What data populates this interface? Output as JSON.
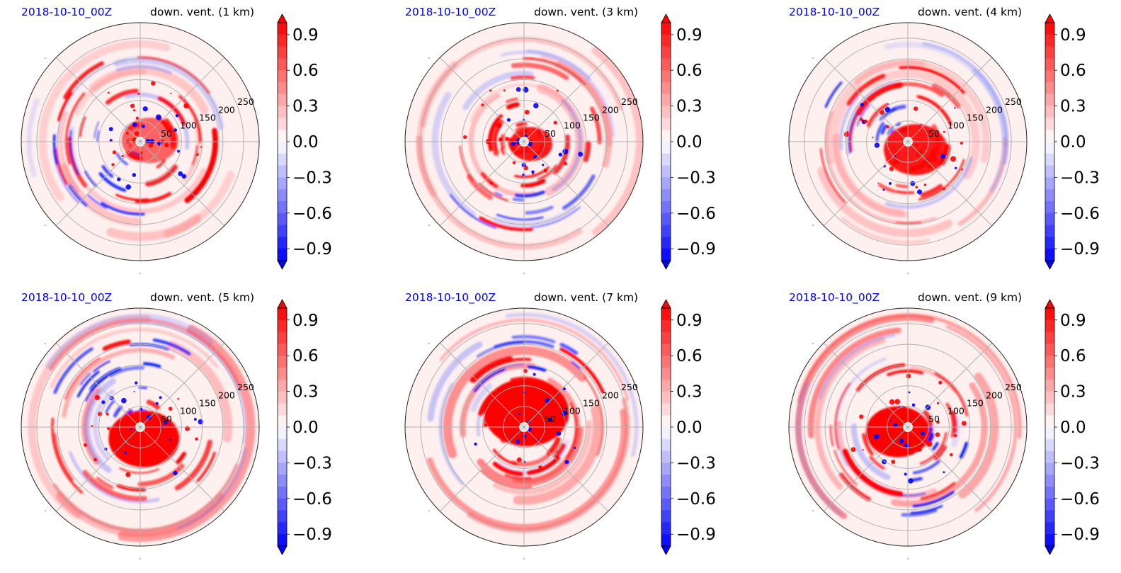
{
  "chart_data": [
    {
      "type": "heatmap",
      "projection": "polar",
      "date": "2018-10-10_00Z",
      "title": "down. vent. (1 km)",
      "radial_ticks": [
        "50",
        "100",
        "150",
        "200",
        "250"
      ],
      "colorbar": {
        "min": -1.0,
        "max": 1.0,
        "extend": "both",
        "ticks": [
          "0.9",
          "0.6",
          "0.3",
          "0.0",
          "−0.3",
          "−0.6",
          "−0.9"
        ],
        "colormap": "bwr"
      }
    },
    {
      "type": "heatmap",
      "projection": "polar",
      "date": "2018-10-10_00Z",
      "title": "down. vent. (3 km)",
      "radial_ticks": [
        "50",
        "100",
        "150",
        "200",
        "250"
      ],
      "colorbar": {
        "min": -1.0,
        "max": 1.0,
        "extend": "both",
        "ticks": [
          "0.9",
          "0.6",
          "0.3",
          "0.0",
          "−0.3",
          "−0.6",
          "−0.9"
        ],
        "colormap": "bwr"
      }
    },
    {
      "type": "heatmap",
      "projection": "polar",
      "date": "2018-10-10_00Z",
      "title": "down. vent. (4 km)",
      "radial_ticks": [
        "50",
        "100",
        "150",
        "200",
        "250"
      ],
      "colorbar": {
        "min": -1.0,
        "max": 1.0,
        "extend": "both",
        "ticks": [
          "0.9",
          "0.6",
          "0.3",
          "0.0",
          "−0.3",
          "−0.6",
          "−0.9"
        ],
        "colormap": "bwr"
      }
    },
    {
      "type": "heatmap",
      "projection": "polar",
      "date": "2018-10-10_00Z",
      "title": "down. vent. (5 km)",
      "radial_ticks": [
        "50",
        "100",
        "150",
        "200",
        "250"
      ],
      "colorbar": {
        "min": -1.0,
        "max": 1.0,
        "extend": "both",
        "ticks": [
          "0.9",
          "0.6",
          "0.3",
          "0.0",
          "−0.3",
          "−0.6",
          "−0.9"
        ],
        "colormap": "bwr"
      }
    },
    {
      "type": "heatmap",
      "projection": "polar",
      "date": "2018-10-10_00Z",
      "title": "down. vent. (7 km)",
      "radial_ticks": [
        "50",
        "100",
        "150",
        "200",
        "250"
      ],
      "colorbar": {
        "min": -1.0,
        "max": 1.0,
        "extend": "both",
        "ticks": [
          "0.9",
          "0.6",
          "0.3",
          "0.0",
          "−0.3",
          "−0.6",
          "−0.9"
        ],
        "colormap": "bwr"
      }
    },
    {
      "type": "heatmap",
      "projection": "polar",
      "date": "2018-10-10_00Z",
      "title": "down. vent. (9 km)",
      "radial_ticks": [
        "50",
        "100",
        "150",
        "200",
        "250"
      ],
      "colorbar": {
        "min": -1.0,
        "max": 1.0,
        "extend": "both",
        "ticks": [
          "0.9",
          "0.6",
          "0.3",
          "0.0",
          "−0.3",
          "−0.6",
          "−0.9"
        ],
        "colormap": "bwr"
      }
    }
  ]
}
